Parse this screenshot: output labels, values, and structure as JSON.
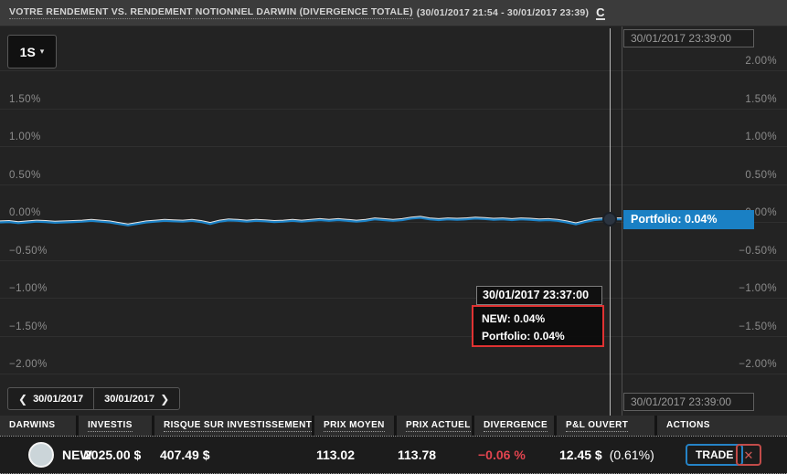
{
  "header": {
    "title_main": "VOTRE RENDEMENT VS. RENDEMENT NOTIONNEL DARWIN (DIVERGENCE TOTALE)",
    "title_dates": "(30/01/2017 21:54 - 30/01/2017 23:39)",
    "refresh_label": "C"
  },
  "chart": {
    "range_button": "1S",
    "caret": "▾",
    "left_axis": [
      "1.50%",
      "1.00%",
      "0.50%",
      "0.00%",
      "−0.50%",
      "−1.00%",
      "−1.50%",
      "−2.00%"
    ],
    "right_axis": [
      "2.00%",
      "1.50%",
      "1.00%",
      "0.50%",
      "0.00%",
      "−0.50%",
      "−1.00%",
      "−1.50%",
      "−2.00%"
    ],
    "top_time_label": "30/01/2017 23:39:00",
    "bottom_time_label": "30/01/2017 23:39:00",
    "portfolio_flag": "Portfolio: 0.04%",
    "tooltip": {
      "time": "30/01/2017 23:37:00",
      "new_line": "NEW: 0.04%",
      "portfolio_line": "Portfolio: 0.04%"
    },
    "nav": {
      "prev_chevron": "❮",
      "prev_label": "30/01/2017",
      "next_label": "30/01/2017",
      "next_chevron": "❯"
    }
  },
  "chart_data": {
    "type": "line",
    "title": "VOTRE RENDEMENT VS. RENDEMENT NOTIONNEL DARWIN (DIVERGENCE TOTALE)",
    "x_range": [
      "30/01/2017 21:54",
      "30/01/2017 23:39"
    ],
    "ylabel": "%",
    "ylim": [
      -2.25,
      2.25
    ],
    "yticks_pct": [
      2.0,
      1.5,
      1.0,
      0.5,
      0.0,
      -0.5,
      -1.0,
      -1.5,
      -2.0
    ],
    "grid": true,
    "crosshair_time": "30/01/2017 23:39:00",
    "series": [
      {
        "name": "NEW",
        "color": "#e9e9e9",
        "current_pct": 0.04
      },
      {
        "name": "Portfolio",
        "color": "#1b81c5",
        "current_pct": 0.04
      }
    ],
    "values_pct": [
      0.0,
      0.005,
      -0.01,
      0.0,
      0.01,
      0.005,
      -0.005,
      0.0,
      0.005,
      0.01,
      0.02,
      0.01,
      0.0,
      -0.02,
      -0.04,
      -0.02,
      0.0,
      0.01,
      0.02,
      0.015,
      0.01,
      0.02,
      0.005,
      -0.02,
      0.01,
      0.025,
      0.02,
      0.01,
      0.02,
      0.015,
      0.005,
      0.01,
      0.02,
      0.01,
      0.02,
      0.03,
      0.02,
      0.03,
      0.02,
      0.01,
      0.02,
      0.04,
      0.03,
      0.02,
      0.03,
      0.05,
      0.06,
      0.04,
      0.03,
      0.04,
      0.035,
      0.04,
      0.05,
      0.045,
      0.035,
      0.04,
      0.03,
      0.04,
      0.035,
      0.025,
      0.03,
      0.02,
      0.0,
      -0.025,
      0.005,
      0.03,
      0.04,
      0.04,
      0.04
    ]
  },
  "table": {
    "headers": [
      "DARWINS",
      "INVESTIS",
      "RISQUE SUR INVESTISSEMENT",
      "PRIX MOYEN",
      "PRIX ACTUEL",
      "DIVERGENCE",
      "P&L OUVERT",
      "ACTIONS"
    ],
    "row": {
      "darwin_name": "NEW",
      "invested": "2025.00 $",
      "risk_on_investment": "407.49 $",
      "avg_price": "113.02",
      "current_price": "113.78",
      "divergence": "−0.06 %",
      "open_pnl": "12.45 $",
      "open_pnl_pct": "(0.61%)",
      "trade_label": "TRADE",
      "close_label": "✕"
    }
  }
}
